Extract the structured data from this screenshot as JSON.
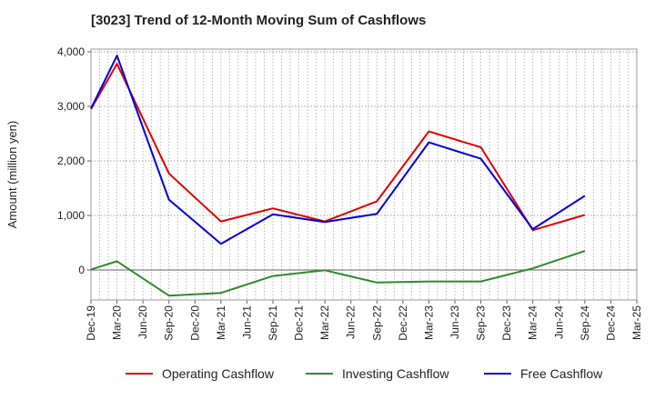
{
  "chart_data": {
    "type": "line",
    "title": "[3023]  Trend of 12-Month Moving Sum of Cashflows",
    "xlabel": "",
    "ylabel": "Amount (million yen)",
    "ylim": [
      -550,
      4050
    ],
    "yticks": [
      0,
      1000,
      2000,
      3000,
      4000
    ],
    "ytick_labels": [
      "0",
      "1,000",
      "2,000",
      "3,000",
      "4,000"
    ],
    "categories": [
      "Dec-19",
      "Mar-20",
      "Jun-20",
      "Sep-20",
      "Dec-20",
      "Mar-21",
      "Jun-21",
      "Sep-21",
      "Dec-21",
      "Mar-22",
      "Jun-22",
      "Sep-22",
      "Dec-22",
      "Mar-23",
      "Jun-23",
      "Sep-23",
      "Dec-23",
      "Mar-24",
      "Jun-24",
      "Sep-24",
      "Dec-24",
      "Mar-25"
    ],
    "grid": true,
    "legend_position": "bottom",
    "series": [
      {
        "name": "Operating Cashflow",
        "color": "#e00000",
        "values": [
          2950,
          3780,
          null,
          1770,
          null,
          890,
          null,
          1130,
          null,
          890,
          null,
          1260,
          null,
          2540,
          null,
          2250,
          null,
          730,
          null,
          1010,
          null,
          null
        ]
      },
      {
        "name": "Investing Cashflow",
        "color": "#2e8b2e",
        "values": [
          10,
          160,
          null,
          -470,
          null,
          -420,
          null,
          -110,
          null,
          -5,
          null,
          -230,
          null,
          -210,
          null,
          -210,
          null,
          30,
          null,
          350,
          null,
          null
        ]
      },
      {
        "name": "Free Cashflow",
        "color": "#0000dd",
        "values": [
          2960,
          3930,
          null,
          1290,
          null,
          480,
          null,
          1020,
          null,
          880,
          null,
          1030,
          null,
          2340,
          null,
          2040,
          null,
          750,
          null,
          1360,
          null,
          null
        ]
      }
    ]
  }
}
